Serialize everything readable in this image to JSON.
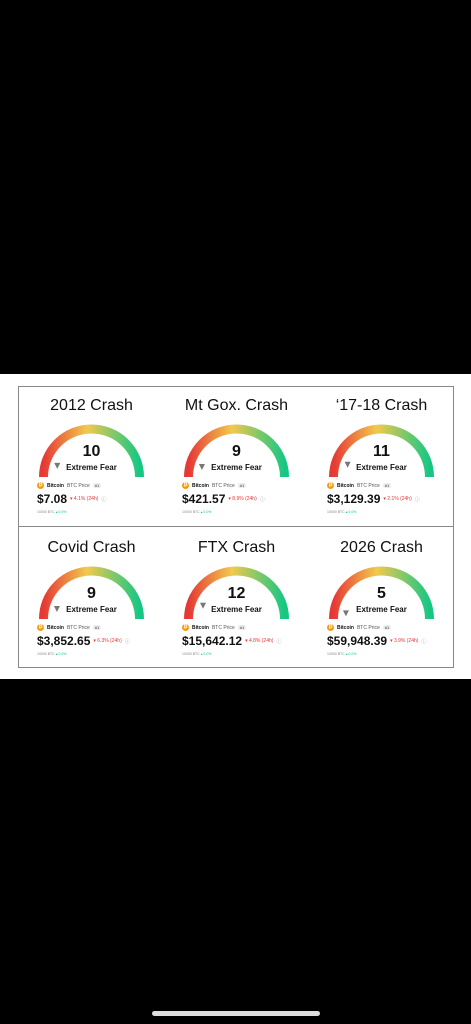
{
  "gauge_caption": "Extreme Fear",
  "coin": {
    "name": "Bitcoin",
    "symbol_label": "BTC Price",
    "rank": "#1",
    "icon": "bitcoin-icon"
  },
  "colors": {
    "fear_red": "#e53935",
    "neutral_yellow": "#f2c94c",
    "greed_green": "#16c784",
    "change_negative": "#e53935"
  },
  "cards": [
    {
      "title": "2012 Crash",
      "value": "10",
      "index": 10,
      "price": "$7.08",
      "change": "▾ 4.1% (24h)",
      "sub_amount": "10000 BTC",
      "sub_change": "▴ 0.0%"
    },
    {
      "title": "Mt Gox. Crash",
      "value": "9",
      "index": 9,
      "price": "$421.57",
      "change": "▾ 8.9% (24h)",
      "sub_amount": "10000 BTC",
      "sub_change": "▴ 0.0%"
    },
    {
      "title": "‘17-18 Crash",
      "value": "11",
      "index": 11,
      "price": "$3,129.39",
      "change": "▾ 2.1% (24h)",
      "sub_amount": "10000 BTC",
      "sub_change": "▴ 0.0%"
    },
    {
      "title": "Covid Crash",
      "value": "9",
      "index": 9,
      "price": "$3,852.65",
      "change": "▾ 6.3% (24h)",
      "sub_amount": "10000 BTC",
      "sub_change": "▴ 0.0%"
    },
    {
      "title": "FTX Crash",
      "value": "12",
      "index": 12,
      "price": "$15,642.12",
      "change": "▾ 4.8% (24h)",
      "sub_amount": "10000 BTC",
      "sub_change": "▴ 0.0%"
    },
    {
      "title": "2026 Crash",
      "value": "5",
      "index": 5,
      "price": "$59,948.39",
      "change": "▾ 3.9% (24h)",
      "sub_amount": "10000 BTC",
      "sub_change": "▴ 0.0%"
    }
  ]
}
